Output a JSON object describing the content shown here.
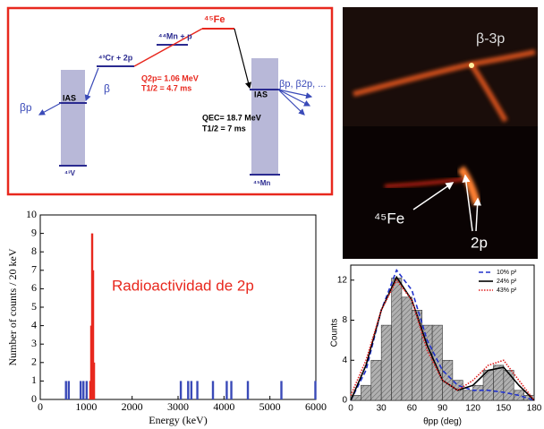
{
  "diagram": {
    "mn_level": "⁴⁴Mn + p",
    "fe_level": "⁴⁵Fe",
    "cr_level": "⁴³Cr + 2p",
    "q2p": "Q2p= 1.06 MeV",
    "t_half_2p": "T1/2 = 4.7 ms",
    "beta_p_left": "βp",
    "ias_left": "IAS",
    "beta_left": "β",
    "v_level": "⁴³V",
    "ias_right": "IAS",
    "beta_right": "βp, β2p, ...",
    "qec": "QEC= 18.7 MeV",
    "t_half_ec": "T1/2 = 7 ms",
    "mn45_level": "⁴⁵Mn"
  },
  "images": {
    "top_label": "β-3p",
    "fe_label": "⁴⁵Fe",
    "p2_label": "2p"
  },
  "chart_data": [
    {
      "type": "bar",
      "title": "Radioactividad de 2p",
      "xlabel": "Energy (keV)",
      "ylabel": "Number of counts / 20 keV",
      "series": [
        {
          "color": "#3a4ab8",
          "x": [
            560,
            620,
            880,
            940,
            1010,
            3060,
            3220,
            3290,
            3420,
            3760,
            4060,
            4160,
            4520,
            5250,
            5990
          ],
          "values": [
            1,
            1,
            1,
            1,
            1,
            1,
            1,
            1,
            1,
            1,
            1,
            1,
            1,
            1,
            1
          ]
        },
        {
          "color": "#e8281e",
          "x": [
            1090,
            1110,
            1130,
            1150,
            1170
          ],
          "values": [
            1,
            4,
            9,
            7,
            2
          ]
        }
      ],
      "xlim": [
        0,
        6000
      ],
      "xticks": [
        0,
        1000,
        2000,
        3000,
        4000,
        5000,
        6000
      ],
      "ylim": [
        0,
        10
      ],
      "yticks": [
        0,
        1,
        2,
        3,
        4,
        5,
        6,
        7,
        8,
        9,
        10
      ]
    },
    {
      "type": "histogram",
      "xlabel": "θpp (deg)",
      "ylabel": "Counts",
      "bins": [
        0,
        10,
        20,
        30,
        40,
        50,
        60,
        70,
        80,
        90,
        100,
        110,
        120,
        130,
        140,
        150,
        160,
        170,
        180
      ],
      "counts": [
        0.5,
        1.5,
        4,
        7.5,
        12.2,
        10.3,
        9,
        7.5,
        7.5,
        4,
        2,
        1,
        1.5,
        3,
        3.5,
        3,
        1,
        0.5
      ],
      "color": "#b0b0b0",
      "series": [
        {
          "name": "10% p²",
          "color": "#2233cc",
          "linestyle": "dashed",
          "x": [
            0,
            15,
            30,
            45,
            60,
            75,
            90,
            105,
            120,
            135,
            150,
            165,
            180
          ],
          "values": [
            0,
            3,
            9,
            13,
            11,
            6,
            3,
            1.5,
            1,
            1,
            0.8,
            0.5,
            0
          ]
        },
        {
          "name": "24% p²",
          "color": "#000000",
          "linestyle": "solid",
          "x": [
            0,
            15,
            30,
            45,
            60,
            75,
            90,
            105,
            120,
            135,
            150,
            165,
            180
          ],
          "values": [
            0,
            3.5,
            9,
            12.3,
            10,
            5.5,
            2,
            1,
            1.5,
            3,
            3.3,
            1.5,
            0
          ]
        },
        {
          "name": "43% p²",
          "color": "#e02020",
          "linestyle": "dotted",
          "x": [
            0,
            15,
            30,
            45,
            60,
            75,
            90,
            105,
            120,
            135,
            150,
            165,
            180
          ],
          "values": [
            0.5,
            4,
            9,
            12,
            10,
            5,
            2,
            1,
            2,
            3.5,
            4,
            2,
            0
          ]
        }
      ],
      "xlim": [
        0,
        180
      ],
      "xticks": [
        0,
        30,
        60,
        90,
        120,
        150,
        180
      ],
      "ylim": [
        0,
        13.5
      ],
      "yticks": [
        0,
        4,
        8,
        12
      ],
      "legend": "upper right"
    }
  ]
}
